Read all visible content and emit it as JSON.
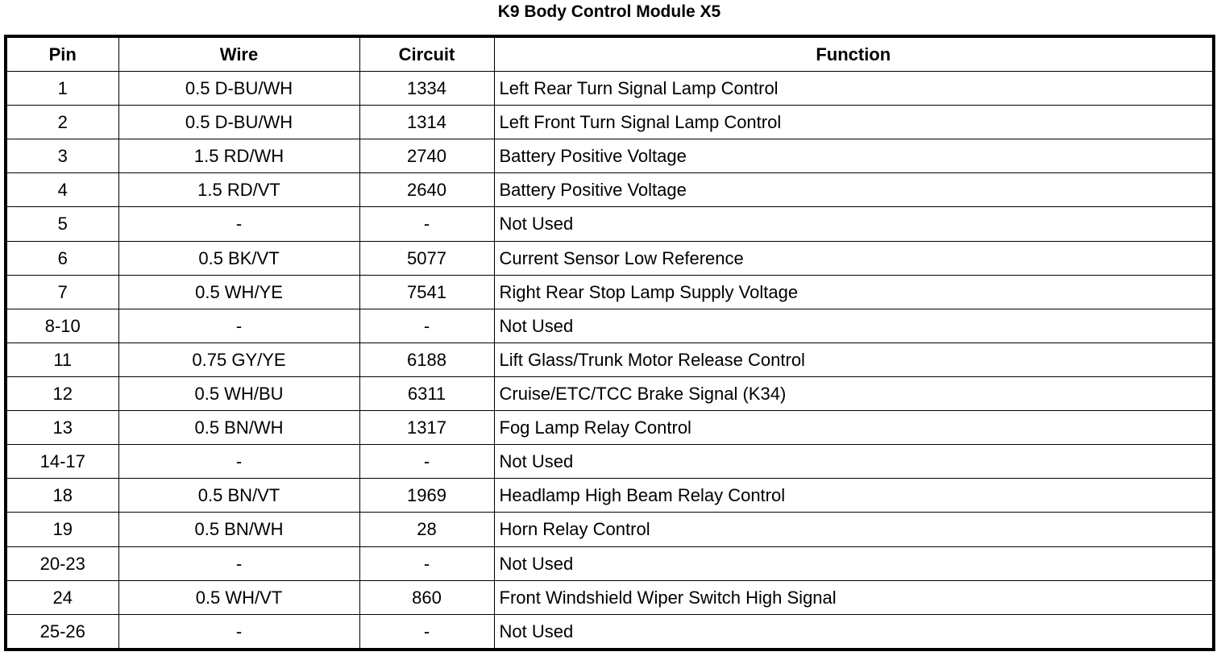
{
  "title": "K9 Body Control Module X5",
  "table": {
    "headers": [
      "Pin",
      "Wire",
      "Circuit",
      "Function"
    ],
    "rows": [
      [
        "1",
        "0.5 D-BU/WH",
        "1334",
        "Left Rear Turn Signal Lamp Control"
      ],
      [
        "2",
        "0.5 D-BU/WH",
        "1314",
        "Left Front Turn Signal Lamp Control"
      ],
      [
        "3",
        "1.5 RD/WH",
        "2740",
        "Battery Positive Voltage"
      ],
      [
        "4",
        "1.5 RD/VT",
        "2640",
        "Battery Positive Voltage"
      ],
      [
        "5",
        "-",
        "-",
        "Not Used"
      ],
      [
        "6",
        "0.5 BK/VT",
        "5077",
        "Current Sensor Low Reference"
      ],
      [
        "7",
        "0.5 WH/YE",
        "7541",
        "Right Rear Stop Lamp Supply Voltage"
      ],
      [
        "8-10",
        "-",
        "-",
        "Not Used"
      ],
      [
        "11",
        "0.75 GY/YE",
        "6188",
        "Lift Glass/Trunk Motor Release Control"
      ],
      [
        "12",
        "0.5 WH/BU",
        "6311",
        "Cruise/ETC/TCC Brake Signal (K34)"
      ],
      [
        "13",
        "0.5 BN/WH",
        "1317",
        "Fog Lamp Relay Control"
      ],
      [
        "14-17",
        "-",
        "-",
        "Not Used"
      ],
      [
        "18",
        "0.5 BN/VT",
        "1969",
        "Headlamp High Beam Relay Control"
      ],
      [
        "19",
        "0.5 BN/WH",
        "28",
        "Horn Relay Control"
      ],
      [
        "20-23",
        "-",
        "-",
        "Not Used"
      ],
      [
        "24",
        "0.5 WH/VT",
        "860",
        "Front Windshield Wiper Switch High Signal"
      ],
      [
        "25-26",
        "-",
        "-",
        "Not Used"
      ]
    ]
  }
}
